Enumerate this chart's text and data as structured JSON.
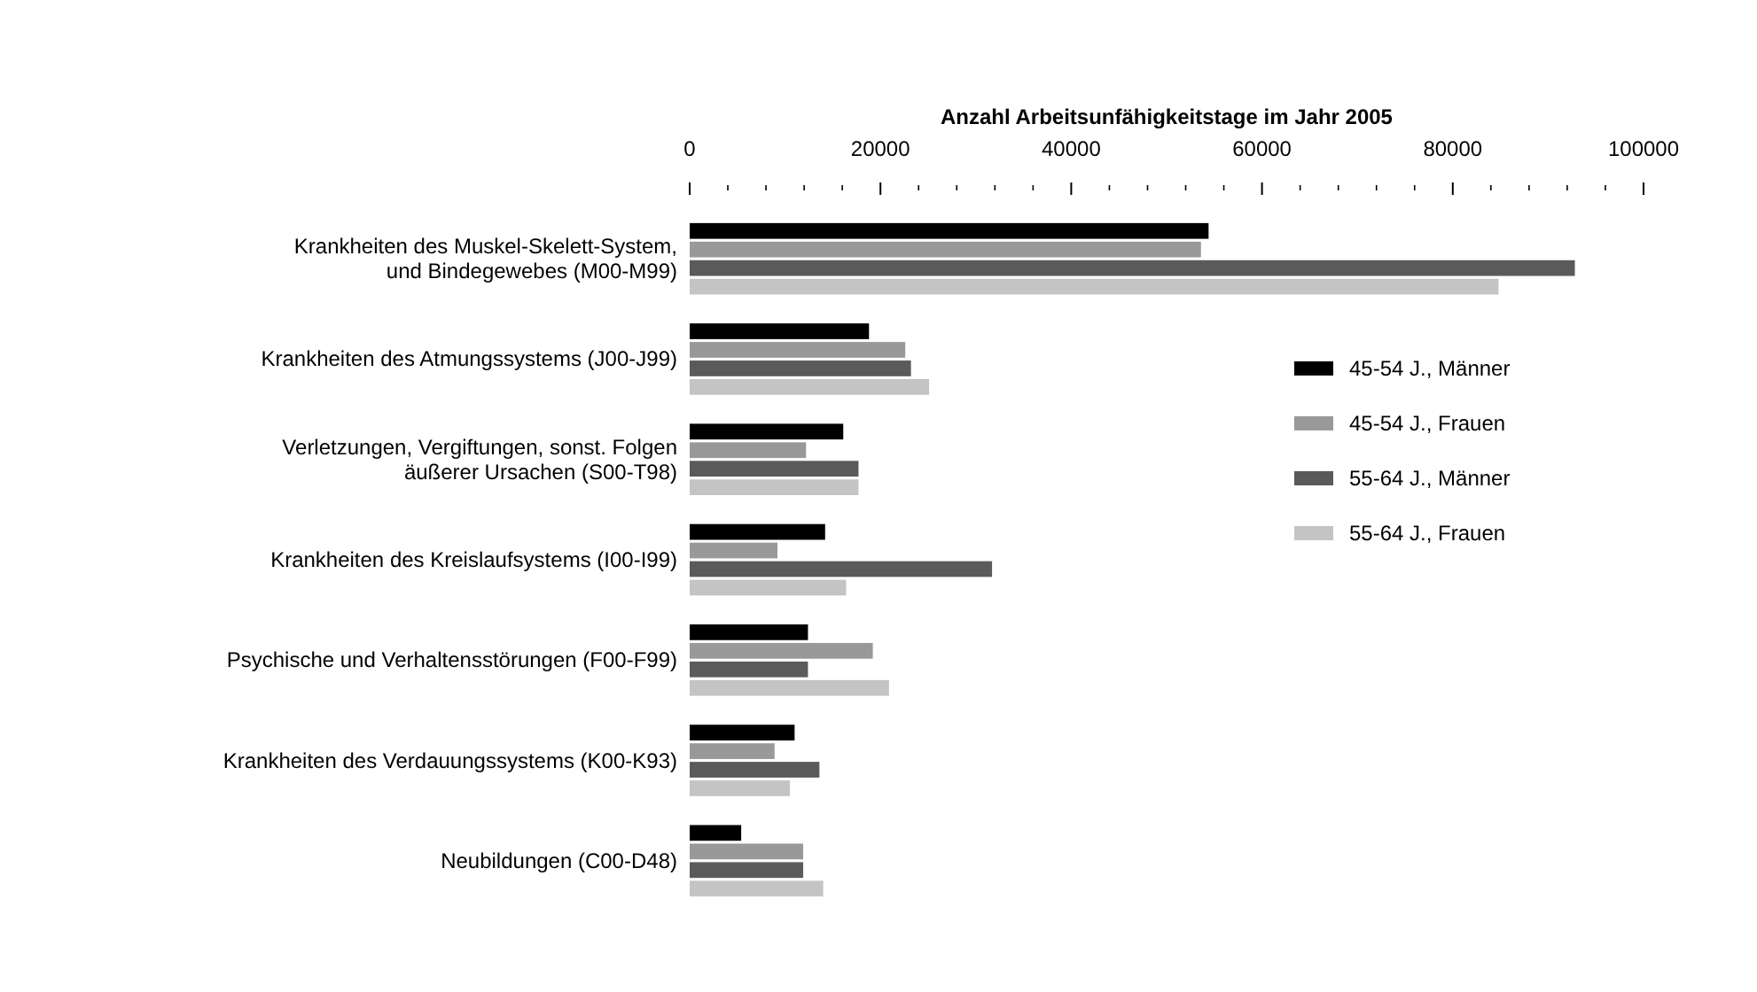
{
  "chart_data": {
    "type": "bar",
    "orientation": "horizontal",
    "title": "Anzahl Arbeitsunfähigkeitstage im Jahr 2005",
    "categories": [
      "Krankheiten des Muskel-Skelett-System,\nund Bindegewebes (M00-M99)",
      "Krankheiten des Atmungssystems (J00-J99)",
      "Verletzungen, Vergiftungen, sonst. Folgen\näußerer Ursachen (S00-T98)",
      "Krankheiten des Kreislaufsystems (I00-I99)",
      "Psychische und Verhaltensstörungen (F00-F99)",
      "Krankheiten des Verdauungssystems (K00-K93)",
      "Neubildungen (C00-D48)"
    ],
    "series": [
      {
        "name": "45-54 J., Männer",
        "color": "#000000",
        "values": [
          54400,
          18800,
          16100,
          14200,
          12400,
          11000,
          5400
        ]
      },
      {
        "name": "45-54 J., Frauen",
        "color": "#999999",
        "values": [
          53600,
          22600,
          12200,
          9200,
          19200,
          8900,
          11900
        ]
      },
      {
        "name": "55-64 J., Männer",
        "color": "#5a5a5a",
        "values": [
          92800,
          23200,
          17700,
          31700,
          12400,
          13600,
          11900
        ]
      },
      {
        "name": "55-64 J., Frauen",
        "color": "#c4c4c4",
        "values": [
          84800,
          25100,
          17700,
          16400,
          20900,
          10500,
          14000
        ]
      }
    ],
    "xlim": [
      0,
      100000
    ],
    "xticks": [
      0,
      {
        "value": 4000,
        "label": null
      },
      {
        "value": 8000,
        "label": null
      },
      {
        "value": 12000,
        "label": null
      },
      {
        "value": 16000,
        "label": null
      },
      20000,
      {
        "value": 24000,
        "label": null
      },
      {
        "value": 28000,
        "label": null
      },
      {
        "value": 32000,
        "label": null
      },
      {
        "value": 36000,
        "label": null
      },
      40000,
      {
        "value": 44000,
        "label": null
      },
      {
        "value": 48000,
        "label": null
      },
      {
        "value": 52000,
        "label": null
      },
      {
        "value": 56000,
        "label": null
      },
      60000,
      {
        "value": 64000,
        "label": null
      },
      {
        "value": 68000,
        "label": null
      },
      {
        "value": 72000,
        "label": null
      },
      {
        "value": 76000,
        "label": null
      },
      80000,
      {
        "value": 84000,
        "label": null
      },
      {
        "value": 88000,
        "label": null
      },
      {
        "value": 92000,
        "label": null
      },
      {
        "value": 96000,
        "label": null
      },
      100000
    ],
    "legend": "right",
    "grid": false
  }
}
